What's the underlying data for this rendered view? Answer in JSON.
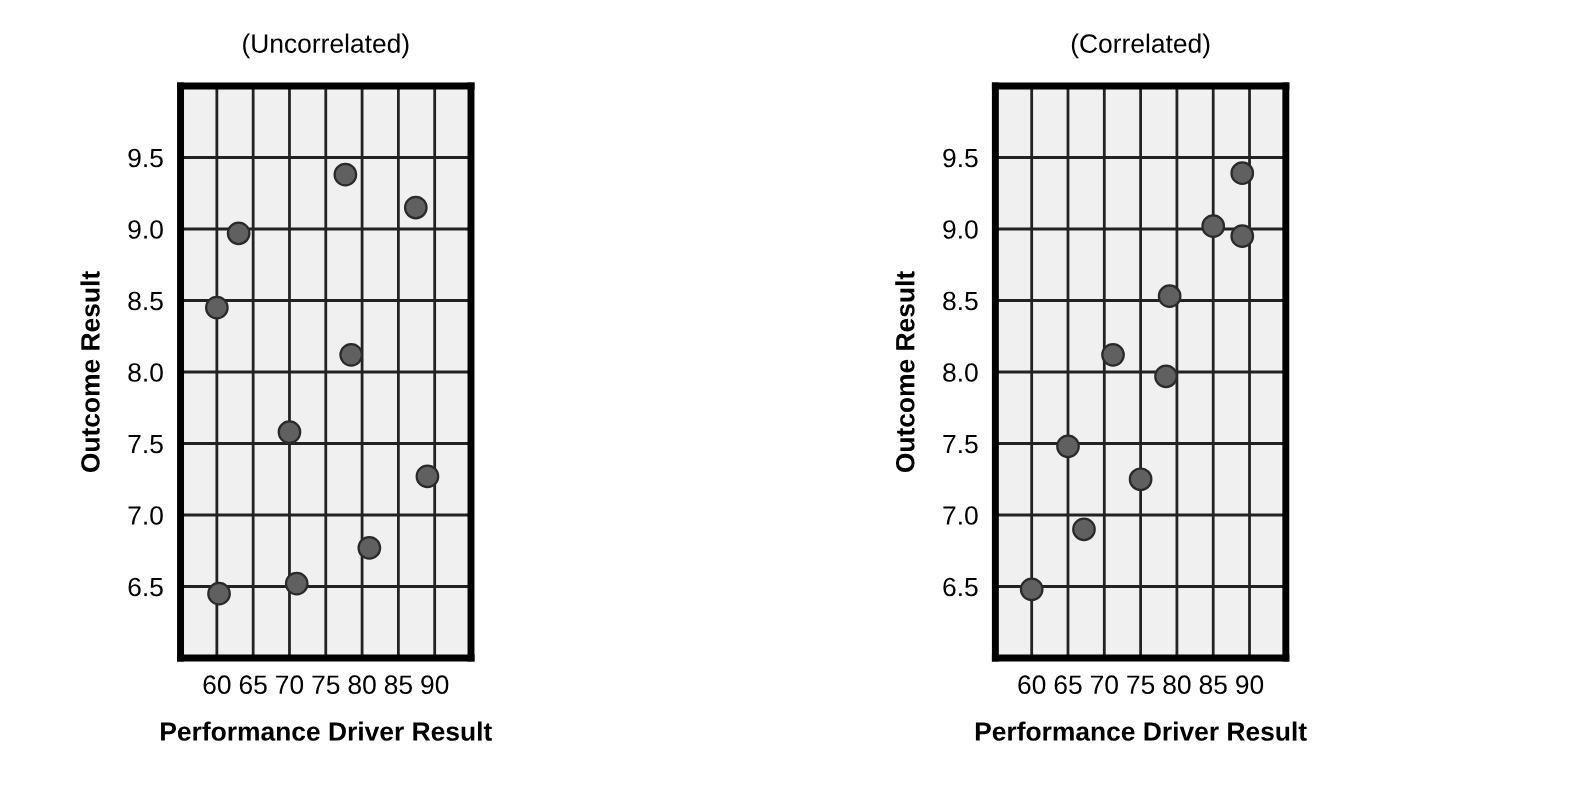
{
  "chart_data": [
    {
      "type": "scatter",
      "title": "(Uncorrelated)",
      "xlabel": "Performance Driver Result",
      "ylabel": "Outcome Result",
      "xlim": [
        55,
        95
      ],
      "ylim": [
        6.0,
        10.0
      ],
      "xticks": [
        60,
        65,
        70,
        75,
        80,
        85,
        90
      ],
      "yticks": [
        {
          "value": 6.5,
          "label": "6.5"
        },
        {
          "value": 7.0,
          "label": "7.0"
        },
        {
          "value": 7.5,
          "label": "7.5"
        },
        {
          "value": 8.0,
          "label": "8.0"
        },
        {
          "value": 8.5,
          "label": "8.5"
        },
        {
          "value": 9.0,
          "label": "9.0"
        },
        {
          "value": 9.5,
          "label": "9.5"
        }
      ],
      "grid": true,
      "marker": "circle",
      "series": [
        {
          "color": "#606060",
          "x": [
            60,
            63,
            60.3,
            70,
            71,
            77.7,
            78.5,
            81,
            87.4,
            89
          ],
          "values": [
            8.45,
            8.97,
            6.45,
            7.58,
            6.52,
            9.38,
            8.12,
            6.77,
            9.15,
            7.27
          ]
        }
      ]
    },
    {
      "type": "scatter",
      "title": "(Correlated)",
      "xlabel": "Performance Driver Result",
      "ylabel": "Outcome Result",
      "xlim": [
        55,
        95
      ],
      "ylim": [
        6.0,
        10.0
      ],
      "xticks": [
        60,
        65,
        70,
        75,
        80,
        85,
        90
      ],
      "yticks": [
        {
          "value": 6.5,
          "label": "6.5"
        },
        {
          "value": 7.0,
          "label": "7.0"
        },
        {
          "value": 7.5,
          "label": "7.5"
        },
        {
          "value": 8.0,
          "label": "8.0"
        },
        {
          "value": 8.5,
          "label": "8.5"
        },
        {
          "value": 9.0,
          "label": "9.0"
        },
        {
          "value": 9.5,
          "label": "9.5"
        }
      ],
      "grid": true,
      "marker": "circle",
      "series": [
        {
          "color": "#606060",
          "x": [
            60,
            65,
            67.2,
            71.2,
            75,
            78.5,
            79,
            85,
            89,
            89
          ],
          "values": [
            6.48,
            7.48,
            6.9,
            8.12,
            7.25,
            7.97,
            8.53,
            9.02,
            9.39,
            8.95
          ]
        }
      ]
    }
  ]
}
